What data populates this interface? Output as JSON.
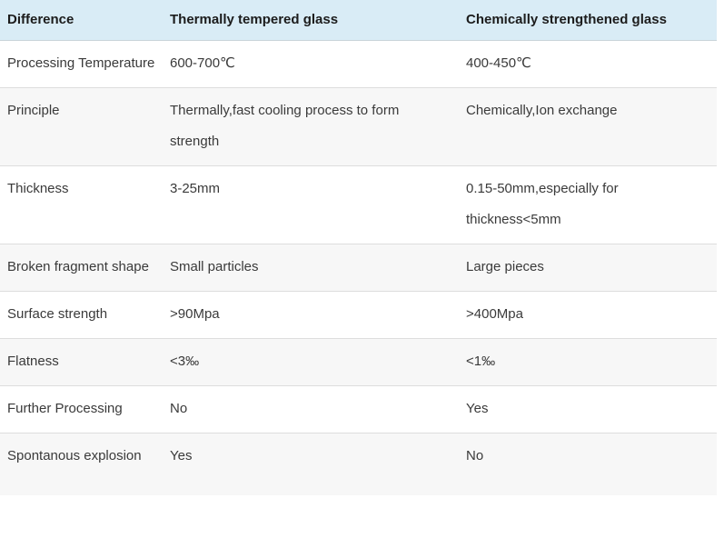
{
  "theme": {
    "header_bg": "#d9ecf6",
    "header_text": "#1c1c1c",
    "body_text": "#3a3a3a",
    "row_alt_bg": "#f7f7f7",
    "row_border": "#dddddd",
    "header_border": "#c9d4da",
    "page_bg": "#ffffff"
  },
  "table": {
    "columns": [
      "Difference",
      "Thermally tempered glass",
      "Chemically strengthened glass"
    ],
    "rows": [
      {
        "cells": [
          "Processing Temperature",
          "600-700℃",
          "400-450℃"
        ]
      },
      {
        "cells": [
          "Principle",
          "Thermally,fast cooling process to form strength",
          "Chemically,Ion exchange"
        ]
      },
      {
        "cells": [
          "Thickness",
          "3-25mm",
          "0.15-50mm,especially for thickness<5mm"
        ]
      },
      {
        "cells": [
          "Broken fragment shape",
          "Small particles",
          "Large pieces"
        ]
      },
      {
        "cells": [
          "Surface strength",
          ">90Mpa",
          ">400Mpa"
        ]
      },
      {
        "cells": [
          "Flatness",
          "<3‰",
          "<1‰"
        ]
      },
      {
        "cells": [
          "Further Processing",
          "No",
          "Yes"
        ]
      },
      {
        "cells": [
          "Spontanous explosion",
          "Yes",
          "No"
        ]
      }
    ]
  }
}
